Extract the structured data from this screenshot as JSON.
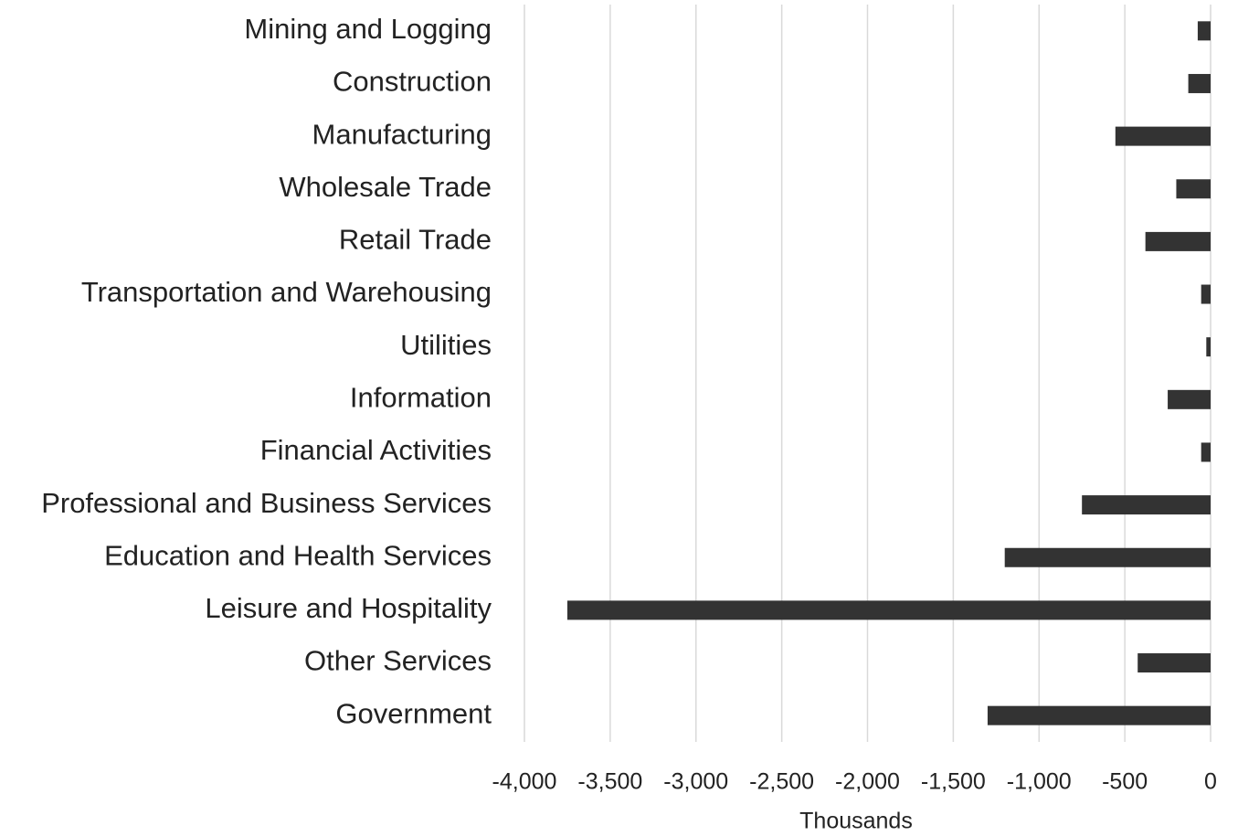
{
  "chart_data": {
    "type": "hbar",
    "x_label": "Thousands",
    "categories": [
      "Mining and Logging",
      "Construction",
      "Manufacturing",
      "Wholesale Trade",
      "Retail Trade",
      "Transportation and Warehousing",
      "Utilities",
      "Information",
      "Financial Activities",
      "Professional and Business Services",
      "Education and Health Services",
      "Leisure and Hospitality",
      "Other Services",
      "Government"
    ],
    "values": [
      -75,
      -130,
      -555,
      -200,
      -380,
      -55,
      -25,
      -250,
      -55,
      -750,
      -1200,
      -3750,
      -425,
      -1300
    ],
    "color": "#333333",
    "xlim": [
      -4000,
      0
    ],
    "xticks": [
      {
        "value": -4000,
        "label": "-4,000"
      },
      {
        "value": -3500,
        "label": "-3,500"
      },
      {
        "value": -3000,
        "label": "-3,000"
      },
      {
        "value": -2500,
        "label": "-2,500"
      },
      {
        "value": -2000,
        "label": "-2,000"
      },
      {
        "value": -1500,
        "label": "-1,500"
      },
      {
        "value": -1000,
        "label": "-1,000"
      },
      -500,
      0
    ],
    "grid": true
  }
}
